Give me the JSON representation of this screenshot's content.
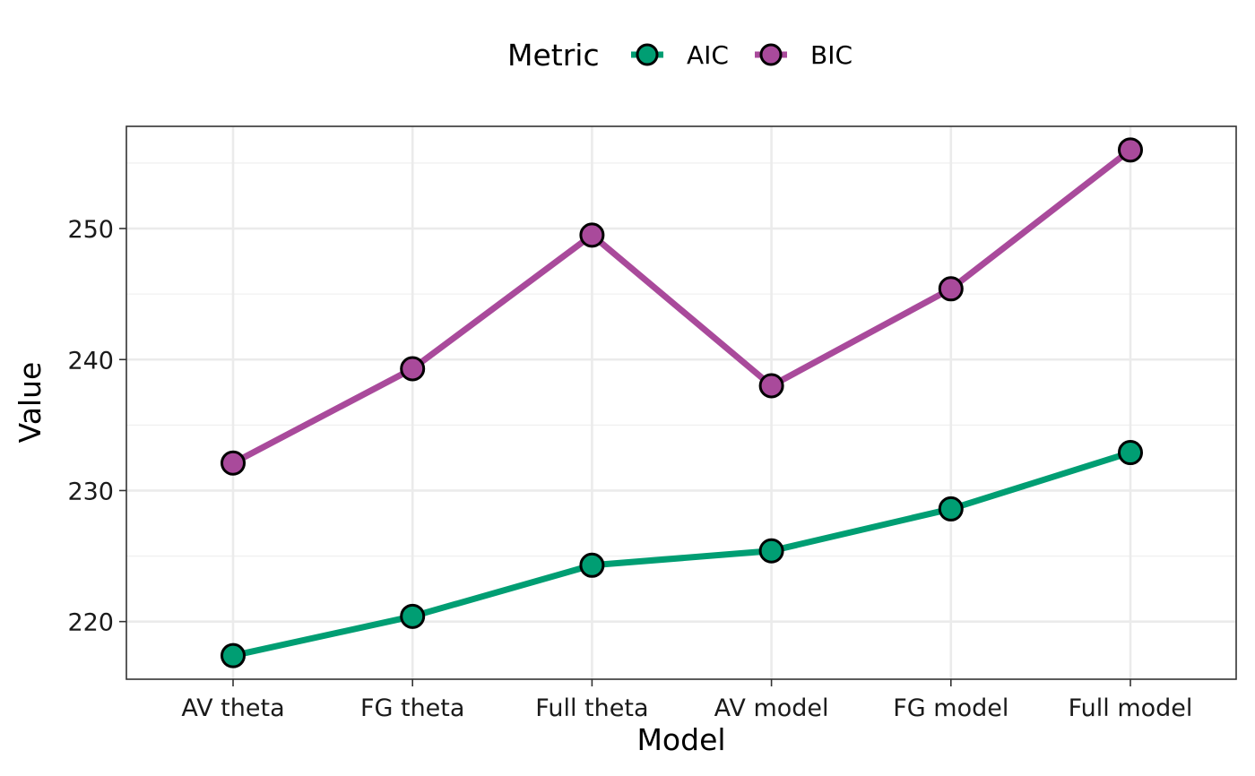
{
  "chart_data": {
    "type": "line",
    "categories": [
      "AV theta",
      "FG theta",
      "Full theta",
      "AV model",
      "FG model",
      "Full model"
    ],
    "series": [
      {
        "name": "AIC",
        "color": "#009E73",
        "values": [
          217.4,
          220.4,
          224.3,
          225.4,
          228.6,
          232.9
        ]
      },
      {
        "name": "BIC",
        "color": "#A94A9B",
        "values": [
          232.1,
          239.3,
          249.5,
          238.0,
          245.4,
          256.0
        ]
      }
    ],
    "xlabel": "Model",
    "ylabel": "Value",
    "ylim": [
      215.6,
      257.8
    ],
    "yticks": [
      220,
      230,
      240,
      250
    ],
    "grid": true,
    "legend": {
      "title": "Metric",
      "position": "top"
    }
  }
}
